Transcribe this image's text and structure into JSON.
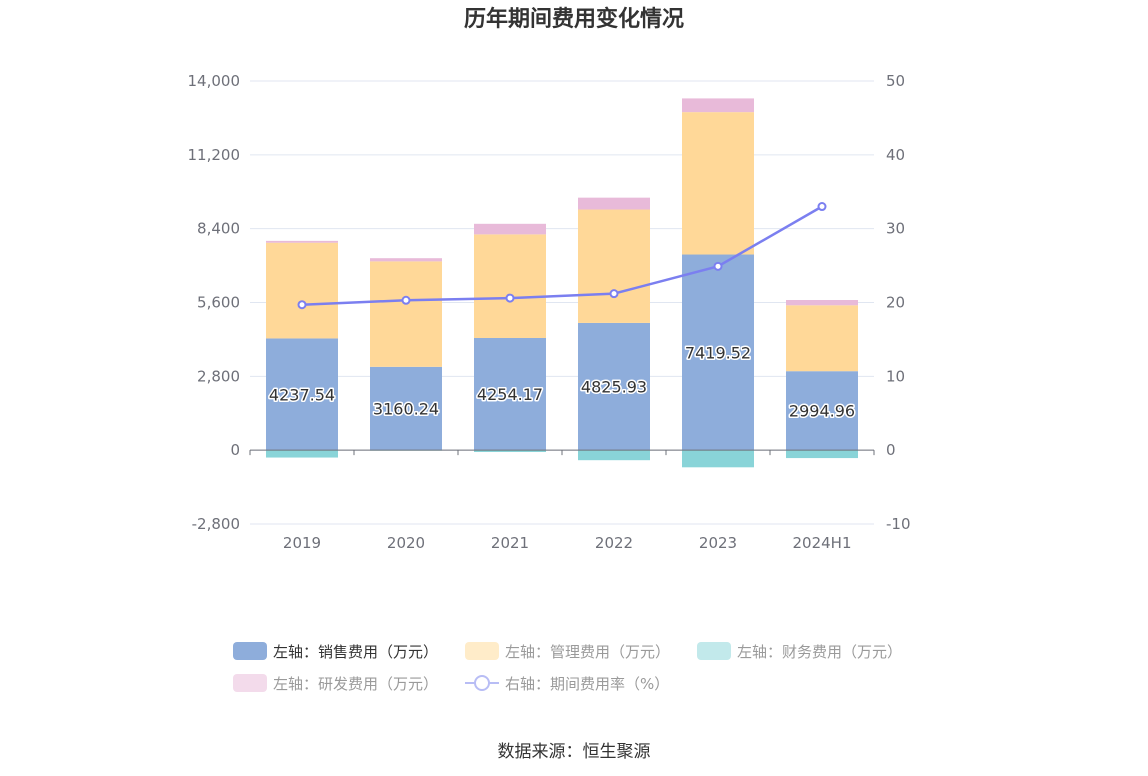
{
  "chart_data": {
    "type": "bar",
    "stacked": true,
    "title": "历年期间费用变化情况",
    "source": "数据来源：恒生聚源",
    "categories": [
      "2019",
      "2020",
      "2021",
      "2022",
      "2023",
      "2024H1"
    ],
    "left_axis": {
      "ticks": [
        "14,000",
        "11,200",
        "8,400",
        "5,600",
        "2,800",
        "0",
        "-2,800"
      ],
      "ylim": [
        -2800,
        14000
      ]
    },
    "right_axis": {
      "ticks": [
        "50",
        "40",
        "30",
        "20",
        "10",
        "0",
        "-10"
      ],
      "ylim": [
        -10,
        50
      ]
    },
    "series": [
      {
        "name": "左轴：销售费用（万元）",
        "axis": "left",
        "color": "#8eaddb",
        "values": [
          4237.54,
          3160.24,
          4254.17,
          4825.93,
          7419.52,
          2994.96
        ],
        "labels": [
          "4237.54",
          "3160.24",
          "4254.17",
          "4825.93",
          "7419.52",
          "2994.96"
        ]
      },
      {
        "name": "左轴：管理费用（万元）",
        "axis": "left",
        "color": "#ffd898",
        "values": [
          3630,
          4000,
          3930,
          4300,
          5400,
          2500
        ]
      },
      {
        "name": "左轴：财务费用（万元）",
        "axis": "left",
        "color": "#89d4d8",
        "values": [
          -280,
          -20,
          -70,
          -380,
          -650,
          -300
        ]
      },
      {
        "name": "左轴：研发费用（万元）",
        "axis": "left",
        "color": "#e8bad9",
        "values": [
          70,
          120,
          400,
          450,
          520,
          200
        ]
      },
      {
        "name": "右轴：期间费用率（%）",
        "axis": "right",
        "type": "line",
        "color": "#7b7ff0",
        "values": [
          19.7,
          20.3,
          20.6,
          21.2,
          24.9,
          33.0
        ]
      }
    ],
    "legend_position": "bottom",
    "grid": true
  }
}
